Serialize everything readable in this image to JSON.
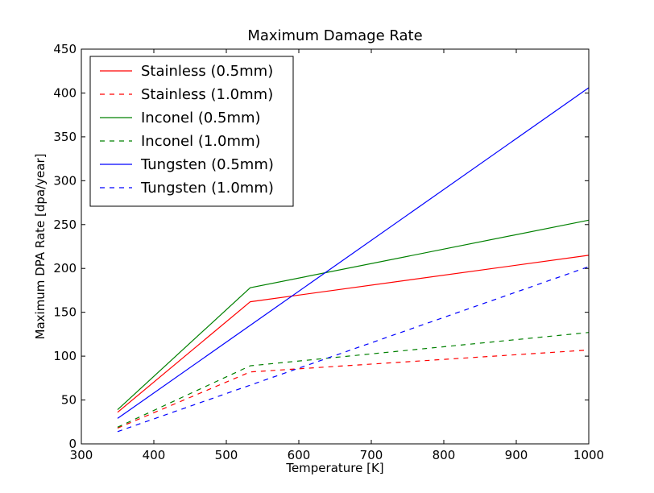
{
  "chart_data": {
    "type": "line",
    "title": "Maximum Damage Rate",
    "xlabel": "Temperature [K]",
    "ylabel": "Maximum DPA Rate [dpa/year]",
    "xlim": [
      300,
      1000
    ],
    "ylim": [
      0,
      450
    ],
    "xticks": [
      300,
      400,
      500,
      600,
      700,
      800,
      900,
      1000
    ],
    "yticks": [
      0,
      50,
      100,
      150,
      200,
      250,
      300,
      350,
      400,
      450
    ],
    "grid": false,
    "legend_position": "top-left",
    "series": [
      {
        "name": "Stainless (0.5mm)",
        "color": "#ff0000",
        "dash": "solid",
        "x": [
          350,
          533,
          1000
        ],
        "y": [
          36,
          162,
          215
        ]
      },
      {
        "name": "Stainless (1.0mm)",
        "color": "#ff0000",
        "dash": "dashed",
        "x": [
          350,
          533,
          1000
        ],
        "y": [
          18,
          82,
          107
        ]
      },
      {
        "name": "Inconel (0.5mm)",
        "color": "#008000",
        "dash": "solid",
        "x": [
          350,
          533,
          1000
        ],
        "y": [
          39,
          178,
          255
        ]
      },
      {
        "name": "Inconel (1.0mm)",
        "color": "#008000",
        "dash": "dashed",
        "x": [
          350,
          533,
          1000
        ],
        "y": [
          19,
          89,
          127
        ]
      },
      {
        "name": "Tungsten (0.5mm)",
        "color": "#0000ff",
        "dash": "solid",
        "x": [
          350,
          1000
        ],
        "y": [
          29,
          406
        ]
      },
      {
        "name": "Tungsten (1.0mm)",
        "color": "#0000ff",
        "dash": "dashed",
        "x": [
          350,
          1000
        ],
        "y": [
          14,
          202
        ]
      }
    ]
  }
}
